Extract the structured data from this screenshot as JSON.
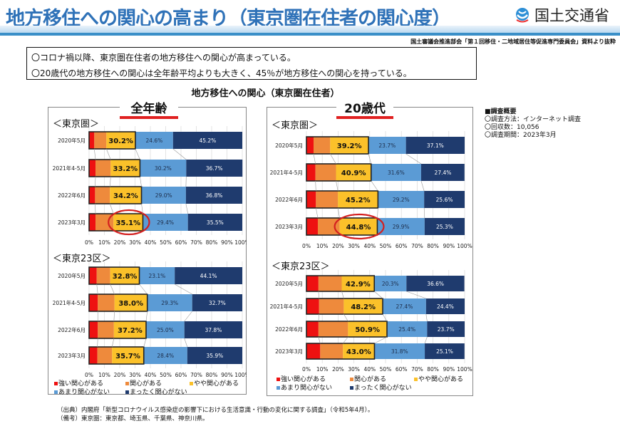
{
  "header": {
    "title": "地方移住への関心の高まり（東京圏在住者の関心度）",
    "logo_text": "国土交通省",
    "source_note": "国土審議会推進部会「第１回移住・二地域居住等促進専門委員会」資料より抜粋"
  },
  "summary": [
    "〇コロナ禍以降、東京圏在住者の地方移住への関心が高まっている。",
    "〇20歳代の地方移住への関心は全年齢平均よりも大きく、45％が地方移住への関心を持っている。"
  ],
  "chart_title": "地方移住への関心（東京圏在住者）",
  "panels": {
    "left": {
      "title": "全年齢",
      "group1": "＜東京圏＞",
      "group2": "＜東京23区＞"
    },
    "right": {
      "title": "20歳代",
      "group1": "＜東京圏＞",
      "group2": "＜東京23区＞"
    }
  },
  "legend": [
    "強い関心がある",
    "関心がある",
    "やや関心がある",
    "あまり関心がない",
    "まったく関心がない"
  ],
  "colors": {
    "strong": "#ee1111",
    "interested": "#ee8a3c",
    "somewhat": "#fbc12a",
    "not_much": "#5b9bd5",
    "none": "#1f3b6e",
    "title": "#2f72b8",
    "highlight_circle": "#d42020"
  },
  "overview": {
    "heading": "■調査概要",
    "method": "〇調査方法：インターネット調査",
    "responses": "〇回収数：10,056",
    "period": "〇調査期間：2023年3月"
  },
  "footnotes": [
    "（出典）内閣府「新型コロナウイルス感染症の影響下における生活意識・行動の変化に関する調査」（令和5年4月）。",
    "（備考）東京圏：東京都、埼玉県、千葉県、神奈川県。"
  ],
  "chart_data": [
    {
      "type": "bar",
      "stacked": true,
      "orientation": "horizontal",
      "panel": "全年齢",
      "group": "＜東京圏＞",
      "categories": [
        "2020年5月",
        "2021年4-5月",
        "2022年6月",
        "2023年3月"
      ],
      "series": [
        {
          "name": "強い関心がある",
          "values": [
            3.4,
            4.2,
            3.9,
            4.2
          ]
        },
        {
          "name": "関心がある",
          "values": [
            7.9,
            9.9,
            9.7,
            11.7
          ]
        },
        {
          "name": "やや関心がある",
          "values": [
            18.9,
            19.1,
            20.6,
            19.2
          ]
        },
        {
          "name": "あまり関心がない",
          "values": [
            24.6,
            30.2,
            29.0,
            29.4
          ]
        },
        {
          "name": "まったく関心がない",
          "values": [
            45.2,
            36.7,
            36.8,
            35.5
          ]
        }
      ],
      "interest_total_labels": [
        "30.2%",
        "33.2%",
        "34.2%",
        "35.1%"
      ],
      "segment_labels": {
        "not_much": [
          "24.6%",
          "30.2%",
          "29.0%",
          "29.4%"
        ],
        "none": [
          "45.2%",
          "36.7%",
          "36.8%",
          "35.5%"
        ]
      },
      "highlight": "2023年3月",
      "xlim": [
        0,
        100
      ],
      "xticks": [
        "0%",
        "10%",
        "20%",
        "30%",
        "40%",
        "50%",
        "60%",
        "70%",
        "80%",
        "90%",
        "100%"
      ]
    },
    {
      "type": "bar",
      "stacked": true,
      "orientation": "horizontal",
      "panel": "全年齢",
      "group": "＜東京23区＞",
      "categories": [
        "2020年5月",
        "2021年4-5月",
        "2022年6月",
        "2023年3月"
      ],
      "series": [
        {
          "name": "強い関心がある",
          "values": [
            5.0,
            5.7,
            5.7,
            5.4
          ]
        },
        {
          "name": "関心がある",
          "values": [
            8.8,
            10.9,
            10.5,
            9.6
          ]
        },
        {
          "name": "やや関心がある",
          "values": [
            19.0,
            21.4,
            21.0,
            20.7
          ]
        },
        {
          "name": "あまり関心がない",
          "values": [
            23.1,
            29.3,
            25.0,
            28.4
          ]
        },
        {
          "name": "まったく関心がない",
          "values": [
            44.1,
            32.7,
            37.8,
            35.9
          ]
        }
      ],
      "interest_total_labels": [
        "32.8%",
        "38.0%",
        "37.2%",
        "35.7%"
      ],
      "segment_labels": {
        "not_much": [
          "23.1%",
          "29.3%",
          "25.0%",
          "28.4%"
        ],
        "none": [
          "44.1%",
          "32.7%",
          "37.8%",
          "35.9%"
        ]
      },
      "xlim": [
        0,
        100
      ],
      "xticks": [
        "0%",
        "10%",
        "20%",
        "30%",
        "40%",
        "50%",
        "60%",
        "70%",
        "80%",
        "90%",
        "100%"
      ]
    },
    {
      "type": "bar",
      "stacked": true,
      "orientation": "horizontal",
      "panel": "20歳代",
      "group": "＜東京圏＞",
      "categories": [
        "2020年5月",
        "2021年4-5月",
        "2022年6月",
        "2023年3月"
      ],
      "series": [
        {
          "name": "強い関心がある",
          "values": [
            4.5,
            5.7,
            6.0,
            7.2
          ]
        },
        {
          "name": "関心がある",
          "values": [
            10.5,
            13.0,
            13.9,
            13.8
          ]
        },
        {
          "name": "やや関心がある",
          "values": [
            24.2,
            22.2,
            25.3,
            23.8
          ]
        },
        {
          "name": "あまり関心がない",
          "values": [
            23.7,
            31.6,
            29.2,
            29.9
          ]
        },
        {
          "name": "まったく関心がない",
          "values": [
            37.1,
            27.4,
            25.6,
            25.3
          ]
        }
      ],
      "interest_total_labels": [
        "39.2%",
        "40.9%",
        "45.2%",
        "44.8%"
      ],
      "segment_labels": {
        "not_much": [
          "23.7%",
          "31.6%",
          "29.2%",
          "29.9%"
        ],
        "none": [
          "37.1%",
          "27.4%",
          "25.6%",
          "25.3%"
        ]
      },
      "highlight": "2023年3月",
      "xlim": [
        0,
        100
      ],
      "xticks": [
        "0%",
        "10%",
        "20%",
        "30%",
        "40%",
        "50%",
        "60%",
        "70%",
        "80%",
        "90%",
        "100%"
      ]
    },
    {
      "type": "bar",
      "stacked": true,
      "orientation": "horizontal",
      "panel": "20歳代",
      "group": "＜東京23区＞",
      "categories": [
        "2020年5月",
        "2021年4-5月",
        "2022年6月",
        "2023年3月"
      ],
      "series": [
        {
          "name": "強い関心がある",
          "values": [
            7.6,
            8.0,
            7.6,
            8.7
          ]
        },
        {
          "name": "関心がある",
          "values": [
            14.7,
            15.6,
            18.7,
            14.4
          ]
        },
        {
          "name": "やや関心がある",
          "values": [
            20.6,
            24.6,
            24.6,
            19.9
          ]
        },
        {
          "name": "あまり関心がない",
          "values": [
            20.3,
            27.4,
            25.4,
            31.8
          ]
        },
        {
          "name": "まったく関心がない",
          "values": [
            36.6,
            24.4,
            23.7,
            25.1
          ]
        }
      ],
      "interest_total_labels": [
        "42.9%",
        "48.2%",
        "50.9%",
        "43.0%"
      ],
      "segment_labels": {
        "not_much": [
          "20.3%",
          "27.4%",
          "25.4%",
          "31.8%"
        ],
        "none": [
          "36.6%",
          "24.4%",
          "23.7%",
          "25.1%"
        ]
      },
      "xlim": [
        0,
        100
      ],
      "xticks": [
        "0%",
        "10%",
        "20%",
        "30%",
        "40%",
        "50%",
        "60%",
        "70%",
        "80%",
        "90%",
        "100%"
      ]
    }
  ]
}
